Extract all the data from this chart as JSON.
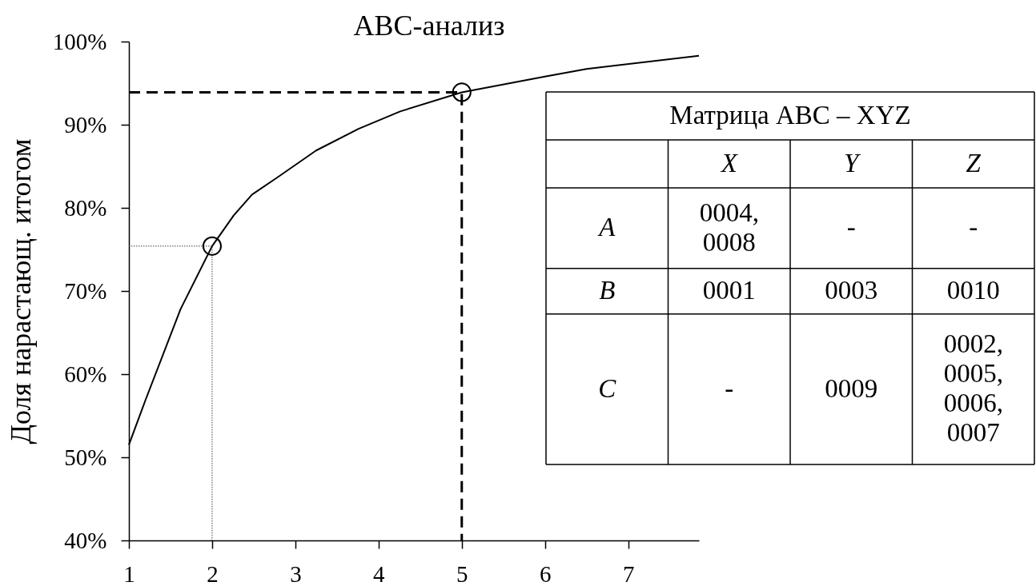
{
  "chart_data": [
    {
      "type": "line",
      "title": "ABC-анализ",
      "ylabel": "Доля нарастающ. итогом",
      "xlim": [
        1,
        7.85
      ],
      "xticks": [
        1,
        2,
        3,
        4,
        5,
        6,
        7
      ],
      "ylim": [
        40,
        100
      ],
      "yticks": [
        {
          "value": 40,
          "label": "40%"
        },
        {
          "value": 50,
          "label": "50%"
        },
        {
          "value": 60,
          "label": "60%"
        },
        {
          "value": 70,
          "label": "70%"
        },
        {
          "value": 80,
          "label": "80%"
        },
        {
          "value": 90,
          "label": "90%"
        },
        {
          "value": 100,
          "label": "100%"
        }
      ],
      "series": [
        {
          "type": "line",
          "color": "#000000",
          "line_style": "solid",
          "x": [
            1,
            1.2,
            1.62,
            2,
            2.26,
            2.48,
            2.79,
            3.25,
            3.76,
            4.26,
            5,
            6,
            6.5,
            7.85
          ],
          "values": [
            51.5,
            56.9,
            67.8,
            75.4,
            79.1,
            81.6,
            83.7,
            86.9,
            89.5,
            91.6,
            93.9,
            95.8,
            96.7,
            98.3
          ]
        },
        {
          "type": "line",
          "color": "#000000",
          "line_style": "dashed",
          "x": [
            1,
            5,
            5
          ],
          "values": [
            93.9,
            93.9,
            40
          ]
        },
        {
          "type": "line",
          "color": "#404040",
          "line_style": "dotted",
          "x": [
            1,
            2,
            2
          ],
          "values": [
            75.4,
            75.4,
            40
          ]
        },
        {
          "type": "scatter",
          "color": "#000000",
          "marker": "circle",
          "x": [
            2,
            5
          ],
          "values": [
            75.4,
            93.9
          ]
        }
      ]
    },
    {
      "type": "other",
      "title": "Матрица ABC – XYZ",
      "categories": [
        "X",
        "Y",
        "Z"
      ],
      "y_categories": [
        "A",
        "B",
        "C"
      ],
      "cell_labels": [
        [
          "0004, 0008",
          "-",
          "-"
        ],
        [
          "0001",
          "0003",
          "0010"
        ],
        [
          "-",
          "0009",
          "0002, 0005, 0006, 0007"
        ]
      ]
    }
  ]
}
